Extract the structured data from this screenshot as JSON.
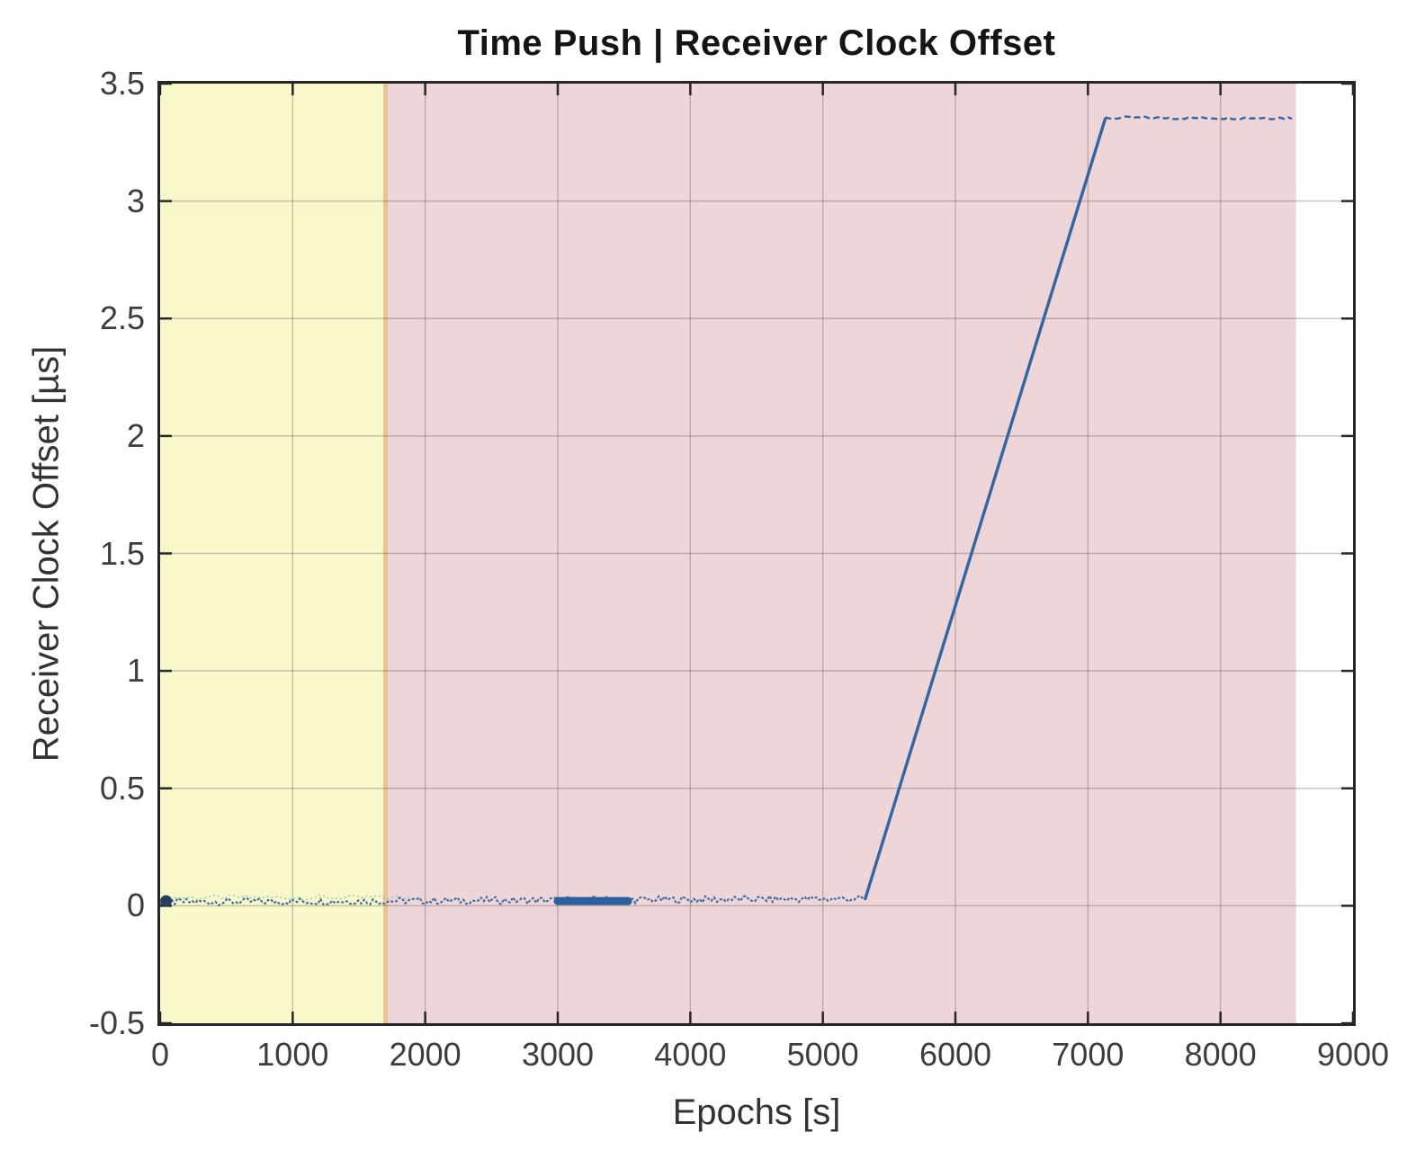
{
  "figure": {
    "title": "Time Push | Receiver Clock Offset",
    "xlabel": "Epochs [s]",
    "ylabel": "Receiver Clock Offset [µs]"
  },
  "chart_data": {
    "type": "line",
    "title": "Time Push | Receiver Clock Offset",
    "xlabel": "Epochs [s]",
    "ylabel": "Receiver Clock Offset [µs]",
    "xlim": [
      0,
      9000
    ],
    "ylim": [
      -0.5,
      3.5
    ],
    "xticks": [
      0,
      1000,
      2000,
      3000,
      4000,
      5000,
      6000,
      7000,
      8000,
      9000
    ],
    "yticks": [
      -0.5,
      0,
      0.5,
      1,
      1.5,
      2,
      2.5,
      3,
      3.5
    ],
    "grid": true,
    "legend": "none",
    "bands": [
      {
        "name": "yellow-highlight-region",
        "x0": 0,
        "x1": 1700,
        "color": "#f9f8ca"
      },
      {
        "name": "pink-highlight-region",
        "x0": 1700,
        "x1": 8570,
        "color": "#eed5d8"
      }
    ],
    "band_boundary_color": "#e8c08b",
    "series": [
      {
        "name": "receiver-clock-offset",
        "color": "#33669f",
        "thick_color": "#2c5f9e",
        "start_dot_color": "#223f5e",
        "noise_color": "#5fae9b",
        "points": [
          [
            0,
            0.02
          ],
          [
            5320,
            0.03
          ],
          [
            7130,
            3.35
          ],
          [
            8550,
            3.35
          ]
        ],
        "flat_segment": {
          "x0": 0,
          "x1": 5320,
          "y": 0.02
        },
        "ramp_segment": {
          "x0": 5320,
          "y0": 0.03,
          "x1": 7130,
          "y1": 3.35
        },
        "plateau_segment": {
          "x0": 7130,
          "x1": 8550,
          "y": 3.35
        },
        "thick_segment": {
          "x0": 3000,
          "x1": 3530,
          "y": 0.02
        },
        "teal_noise_segment": {
          "x0": 0,
          "x1": 1900,
          "y": 0.035
        }
      }
    ],
    "frame_color": "#262626",
    "grid_color_rgba": "rgba(70,70,70,0.30)",
    "tick_label_color": "#3d3d3d"
  }
}
